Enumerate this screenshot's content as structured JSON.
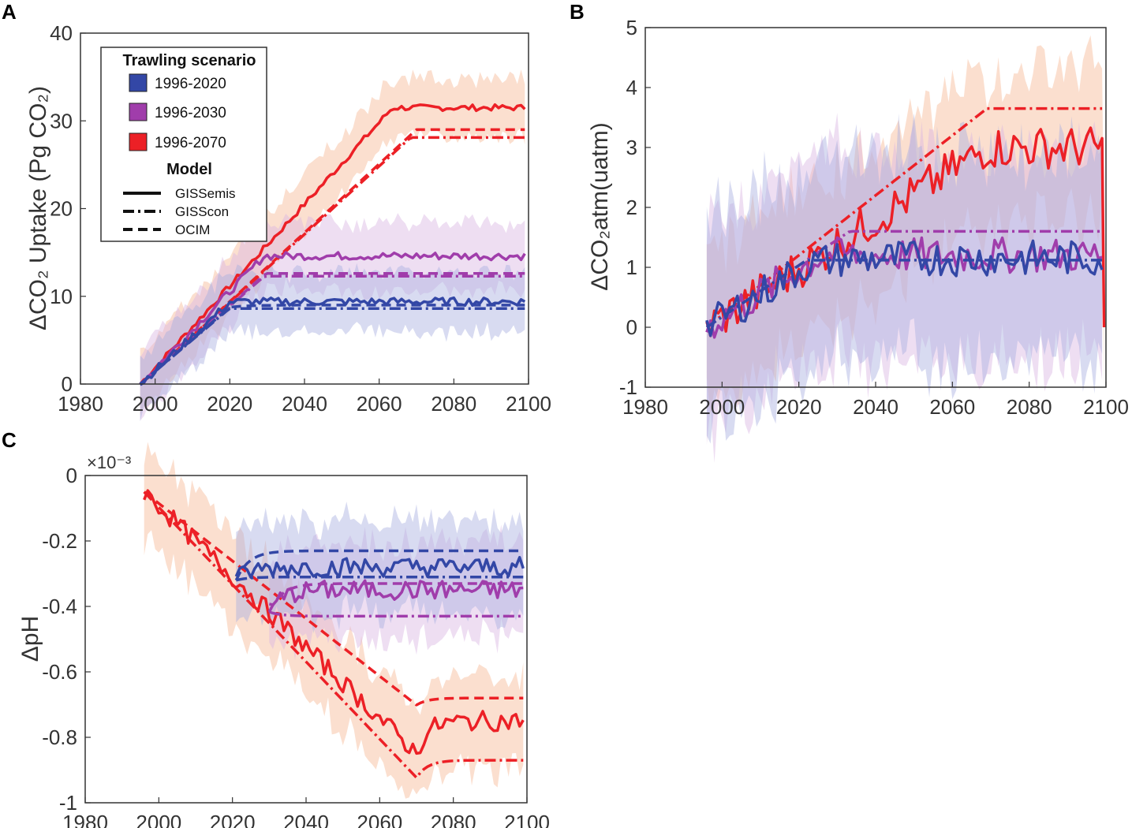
{
  "colors": {
    "blue": "#3347a6",
    "purple": "#a03dab",
    "red": "#ec2026",
    "band_blue": "#a9b0e0",
    "band_purple": "#d9b6e3",
    "band_red": "#f7b895"
  },
  "legend": {
    "title": "Trawling scenario",
    "scenarios": [
      "1996-2020",
      "1996-2030",
      "1996-2070"
    ],
    "model_title": "Model",
    "models": [
      "GISSemis",
      "GISScon",
      "OCIM"
    ]
  },
  "chart_data": [
    {
      "panel": "A",
      "type": "line",
      "xlim": [
        1980,
        2100
      ],
      "ylim": [
        0,
        40
      ],
      "xticks": [
        "1980",
        "2000",
        "2020",
        "2040",
        "2060",
        "2080",
        "2100"
      ],
      "yticks": [
        "0",
        "10",
        "20",
        "30",
        "40"
      ],
      "ylabel": "ΔCO₂ Uptake (Pg CO₂)",
      "series": [
        {
          "scenario": "1996-2070",
          "model": "GISSemis",
          "color": "red",
          "end_year": 2070,
          "rate": 0.466,
          "final": 31.5,
          "noise": 0.35,
          "band": 3.5
        },
        {
          "scenario": "1996-2070",
          "model": "GISScon",
          "color": "red",
          "end_year": 2070,
          "rate": 0.388,
          "final": 28.1
        },
        {
          "scenario": "1996-2070",
          "model": "OCIM",
          "color": "red",
          "end_year": 2070,
          "rate": 0.392,
          "final": 29.0
        },
        {
          "scenario": "1996-2030",
          "model": "GISSemis",
          "color": "purple",
          "end_year": 2030,
          "rate": 0.44,
          "final": 14.6,
          "noise": 0.45,
          "band": 4.0
        },
        {
          "scenario": "1996-2030",
          "model": "GISScon",
          "color": "purple",
          "end_year": 2030,
          "rate": 0.37,
          "final": 12.3
        },
        {
          "scenario": "1996-2030",
          "model": "OCIM",
          "color": "purple",
          "end_year": 2030,
          "rate": 0.375,
          "final": 12.6
        },
        {
          "scenario": "1996-2020",
          "model": "GISSemis",
          "color": "blue",
          "end_year": 2020,
          "rate": 0.39,
          "final": 9.4,
          "noise": 0.45,
          "band": 3.5
        },
        {
          "scenario": "1996-2020",
          "model": "GISScon",
          "color": "blue",
          "end_year": 2020,
          "rate": 0.36,
          "final": 8.6
        },
        {
          "scenario": "1996-2020",
          "model": "OCIM",
          "color": "blue",
          "end_year": 2020,
          "rate": 0.365,
          "final": 9.0
        }
      ]
    },
    {
      "panel": "B",
      "type": "line",
      "xlim": [
        1980,
        2100
      ],
      "ylim": [
        -1,
        5
      ],
      "xticks": [
        "1980",
        "2000",
        "2020",
        "2040",
        "2060",
        "2080",
        "2100"
      ],
      "yticks": [
        "-1",
        "0",
        "1",
        "2",
        "3",
        "4",
        "5"
      ],
      "ylabel": "ΔCO₂atm(uatm)",
      "series": [
        {
          "scenario": "1996-2070",
          "model": "GISScon",
          "color": "red",
          "end_year": 2070,
          "rate": 0.05,
          "final": 3.65
        },
        {
          "scenario": "1996-2070",
          "model": "GISSemis",
          "color": "red",
          "end_year": 2070,
          "rate": 0.041,
          "final": 3.0,
          "noise": 0.35,
          "band": 1.3
        },
        {
          "scenario": "1996-2030",
          "model": "GISScon",
          "color": "purple",
          "end_year": 2035,
          "rate": 0.043,
          "final": 1.6
        },
        {
          "scenario": "1996-2030",
          "model": "GISSemis",
          "color": "purple",
          "end_year": 2030,
          "rate": 0.04,
          "final": 1.2,
          "noise": 0.3,
          "band": 1.8
        },
        {
          "scenario": "1996-2020",
          "model": "GISScon",
          "color": "blue",
          "end_year": 2022,
          "rate": 0.043,
          "final": 1.12
        },
        {
          "scenario": "1996-2020",
          "model": "GISSemis",
          "color": "blue",
          "end_year": 2022,
          "rate": 0.04,
          "final": 1.15,
          "noise": 0.3,
          "band": 1.8
        }
      ]
    },
    {
      "panel": "C",
      "type": "line",
      "xlim": [
        1980,
        2100
      ],
      "ylim": [
        -1.0,
        0
      ],
      "yunit": "×10⁻³",
      "xticks": [
        "1980",
        "2000",
        "2020",
        "2040",
        "2060",
        "2080",
        "2100"
      ],
      "yticks": [
        "-1",
        "-0.8",
        "-0.6",
        "-0.4",
        "-0.2",
        "0"
      ],
      "ylabel": "ΔpH",
      "series": [
        {
          "scenario": "1996-2070",
          "model": "OCIM",
          "color": "red",
          "end_year": 2070,
          "rate": -0.0088,
          "final": -0.68
        },
        {
          "scenario": "1996-2070",
          "model": "GISSemis",
          "color": "red",
          "end_year": 2070,
          "rate": -0.0108,
          "final": -0.75,
          "noise": 0.03,
          "band": 0.15
        },
        {
          "scenario": "1996-2070",
          "model": "GISScon",
          "color": "red",
          "end_year": 2070,
          "rate": -0.0118,
          "final": -0.87
        },
        {
          "scenario": "1996-2030",
          "model": "OCIM",
          "color": "purple",
          "start_year": 2030,
          "final": -0.33
        },
        {
          "scenario": "1996-2030",
          "model": "GISSemis",
          "color": "purple",
          "start_year": 2030,
          "final": -0.35,
          "noise": 0.03,
          "band": 0.15
        },
        {
          "scenario": "1996-2030",
          "model": "GISScon",
          "color": "purple",
          "start_year": 2030,
          "final": -0.43
        },
        {
          "scenario": "1996-2020",
          "model": "OCIM",
          "color": "blue",
          "start_year": 2021,
          "final": -0.23
        },
        {
          "scenario": "1996-2020",
          "model": "GISSemis",
          "color": "blue",
          "start_year": 2021,
          "final": -0.28,
          "noise": 0.03,
          "band": 0.15
        },
        {
          "scenario": "1996-2020",
          "model": "GISScon",
          "color": "blue",
          "start_year": 2021,
          "final": -0.31
        }
      ]
    }
  ]
}
